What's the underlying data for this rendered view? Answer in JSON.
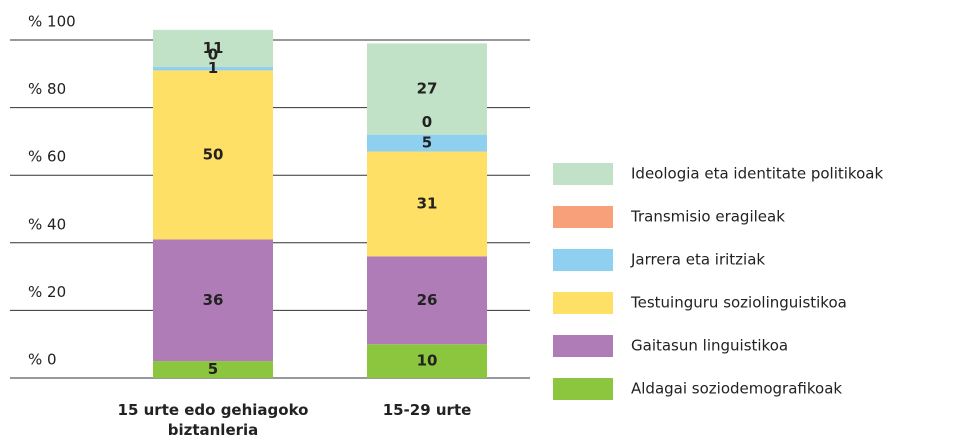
{
  "chart_data": {
    "type": "stacked_bar",
    "categories": [
      "15 urte edo gehiagoko biztanleria",
      "15-29 urte"
    ],
    "series": [
      {
        "name": "Aldagai soziodemografikoak",
        "color": "#8cc63f",
        "values": [
          5,
          10
        ]
      },
      {
        "name": "Gaitasun linguistikoa",
        "color": "#b07cb8",
        "values": [
          36,
          26
        ]
      },
      {
        "name": "Testuinguru soziolinguistikoa",
        "color": "#ffe066",
        "values": [
          50,
          31
        ]
      },
      {
        "name": "Jarrera eta iritziak",
        "color": "#8fd0f0",
        "values": [
          1,
          5
        ]
      },
      {
        "name": "Transmisio eragileak",
        "color": "#f7a07a",
        "values": [
          0,
          0
        ]
      },
      {
        "name": "Ideologia eta identitate politikoak",
        "color": "#c2e2c7",
        "values": [
          11,
          27
        ]
      }
    ],
    "ylim": [
      0,
      100
    ],
    "yticks": [
      {
        "value": 0,
        "label": "% 0"
      },
      {
        "value": 20,
        "label": "% 20"
      },
      {
        "value": 40,
        "label": "% 40"
      },
      {
        "value": 60,
        "label": "% 60"
      },
      {
        "value": 80,
        "label": "% 80"
      },
      {
        "value": 100,
        "label": "% 100"
      }
    ],
    "grid": true
  }
}
